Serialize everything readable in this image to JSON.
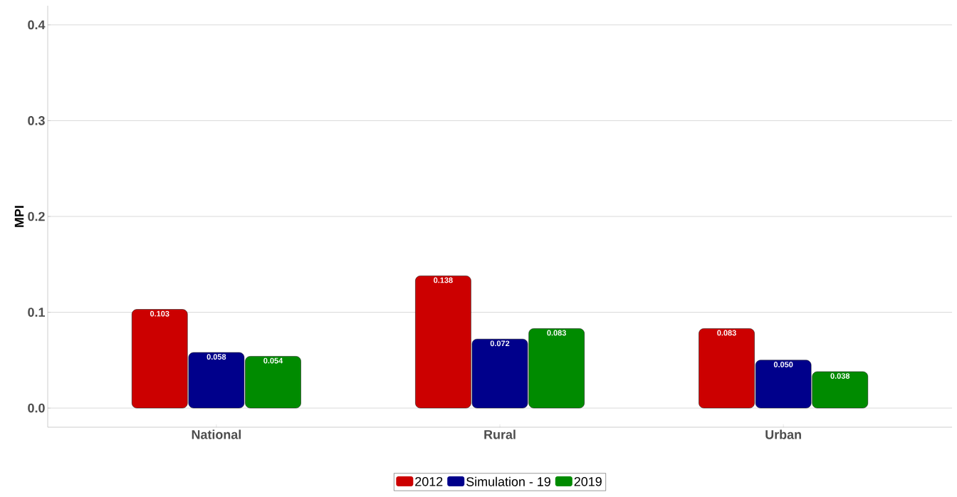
{
  "chart_data": {
    "type": "bar",
    "ylabel": "MPI",
    "categories": [
      "National",
      "Rural",
      "Urban"
    ],
    "series": [
      {
        "name": "2012",
        "color": "#cc0000",
        "values": [
          0.103,
          0.138,
          0.083
        ],
        "value_labels": [
          "0.103",
          "0.138",
          "0.083"
        ]
      },
      {
        "name": "Simulation - 19",
        "color": "#00008b",
        "values": [
          0.058,
          0.072,
          0.05
        ],
        "value_labels": [
          "0.058",
          "0.072",
          "0.050"
        ]
      },
      {
        "name": "2019",
        "color": "#008b00",
        "values": [
          0.054,
          0.083,
          0.038
        ],
        "value_labels": [
          "0.054",
          "0.083",
          "0.038"
        ]
      }
    ],
    "ylim": [
      -0.02,
      0.42
    ],
    "yticks": [
      {
        "value": 0,
        "label": "0.0"
      },
      {
        "value": 0.1,
        "label": "0.1"
      },
      {
        "value": 0.2,
        "label": "0.2"
      },
      {
        "value": 0.3,
        "label": "0.3"
      },
      {
        "value": 0.4,
        "label": "0.4"
      }
    ],
    "grid": "y",
    "legend": "bottom"
  }
}
